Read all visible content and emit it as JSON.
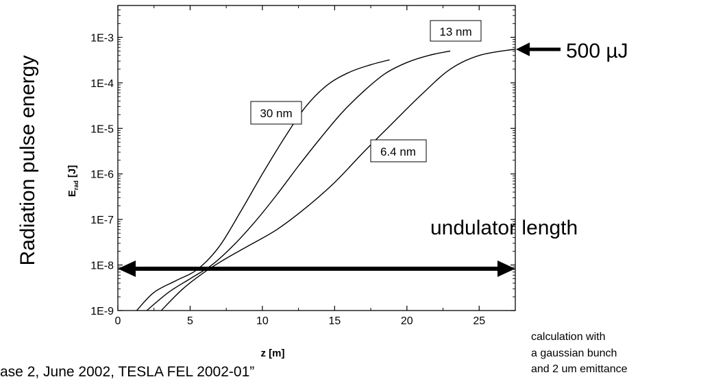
{
  "chart_data": {
    "type": "line",
    "xlabel": "z [m]",
    "ylabel": "E_rad [J]",
    "y_scale": "log",
    "xlim": [
      0,
      27.5
    ],
    "ylim": [
      1e-09,
      0.005
    ],
    "x_ticks": [
      0,
      5,
      10,
      15,
      20,
      25
    ],
    "y_ticks": [
      1e-09,
      1e-08,
      1e-07,
      1e-06,
      1e-05,
      0.0001,
      0.001
    ],
    "x_tick_labels": [
      "0",
      "5",
      "10",
      "15",
      "20",
      "25"
    ],
    "y_tick_labels": [
      "1E-9",
      "1E-8",
      "1E-7",
      "1E-6",
      "1E-5",
      "1E-4",
      "1E-3"
    ],
    "grid": false,
    "series": [
      {
        "name": "30 nm",
        "x": [
          1.3,
          2.5,
          4.0,
          5.5,
          7.0,
          8.5,
          10.0,
          11.5,
          13.0,
          14.5,
          16.0,
          17.5,
          18.8
        ],
        "y": [
          1e-09,
          2.5e-09,
          4.5e-09,
          8e-09,
          2.5e-08,
          1.5e-07,
          1e-06,
          6e-06,
          3e-05,
          9e-05,
          0.00017,
          0.00025,
          0.00032
        ]
      },
      {
        "name": "13 nm",
        "x": [
          2.0,
          3.5,
          5.0,
          6.5,
          8.0,
          9.5,
          11.0,
          12.5,
          14.0,
          15.5,
          17.0,
          18.5,
          20.0,
          21.5,
          23.0
        ],
        "y": [
          1e-09,
          2.5e-09,
          5e-09,
          1e-08,
          2.7e-08,
          9e-08,
          3.5e-07,
          1.5e-06,
          6e-06,
          2.2e-05,
          6.5e-05,
          0.00016,
          0.00028,
          0.0004,
          0.0005
        ]
      },
      {
        "name": "6.4 nm",
        "x": [
          3.0,
          4.5,
          6.0,
          7.5,
          9.0,
          11.0,
          13.0,
          15.0,
          17.0,
          19.0,
          21.0,
          23.0,
          25.0,
          27.5
        ],
        "y": [
          1e-09,
          3e-09,
          7e-09,
          1.4e-08,
          2.6e-08,
          6e-08,
          1.8e-07,
          6.5e-07,
          3e-06,
          1.3e-05,
          5.5e-05,
          0.0002,
          0.0004,
          0.00055
        ]
      }
    ],
    "annotations": {
      "series_labels": [
        "30 nm",
        "13 nm",
        "6.4 nm"
      ],
      "energy_label": "500 µJ",
      "length_label": "undulator length",
      "ylabel_outer": "Radiation pulse energy",
      "note_lines": [
        "calculation with",
        "a gaussian bunch",
        "and 2 um emittance"
      ],
      "reference": "ase 2, June 2002, TESLA FEL 2002-01”"
    }
  }
}
